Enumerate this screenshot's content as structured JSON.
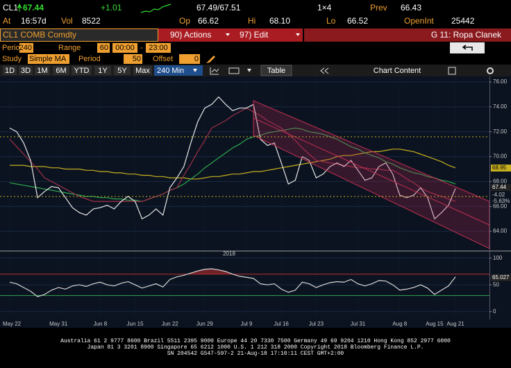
{
  "header": {
    "ticker": "CL1",
    "last": "67.44",
    "change": "+1.01",
    "bid_ask": "67.49/67.51",
    "size": "1×4",
    "prev_label": "Prev",
    "prev": "66.43",
    "at_label": "At",
    "time": "16:57d",
    "vol_label": "Vol",
    "vol": "8522",
    "open_label": "Op",
    "open": "66.62",
    "high_label": "Hi",
    "high": "68.10",
    "low_label": "Lo",
    "low": "66.52",
    "oi_label": "OpenInt",
    "oi": "25442"
  },
  "menu": {
    "security": "CL1 COMB Comdty",
    "actions": "90) Actions",
    "edit": "97) Edit",
    "page": "G 11: Ropa Clanek"
  },
  "settings": {
    "period_label": "Period",
    "period": "240",
    "range_label": "Range",
    "range": "60",
    "from": "00:00",
    "dash": "-",
    "to": "23:00",
    "study_label": "Study",
    "study": "Simple MA",
    "study_period_label": "Period",
    "study_period": "50",
    "offset_label": "Offset",
    "offset": "0"
  },
  "toolbar": {
    "ranges": [
      "1D",
      "3D",
      "1M",
      "6M",
      "YTD",
      "1Y",
      "5Y",
      "Max"
    ],
    "interval": "240 Min",
    "table": "Table",
    "content": "Chart Content"
  },
  "chart_data": [
    {
      "type": "line",
      "categories": [
        "May 22",
        null,
        null,
        null,
        null,
        null,
        null,
        "May 31",
        null,
        null,
        null,
        null,
        null,
        "Jun 8",
        null,
        null,
        null,
        null,
        "Jun 15",
        null,
        null,
        null,
        null,
        "Jun 22",
        null,
        null,
        null,
        null,
        "Jun 29",
        null,
        null,
        null,
        null,
        null,
        "Jul 9",
        null,
        null,
        null,
        null,
        "Jul 16",
        null,
        null,
        null,
        null,
        "Jul 23",
        null,
        null,
        null,
        null,
        null,
        "Jul 31",
        null,
        null,
        null,
        null,
        null,
        "Aug 8",
        null,
        null,
        null,
        null,
        "Aug 15",
        null,
        null,
        "Aug 21"
      ],
      "year_label": "2018",
      "series": [
        {
          "color": "#c8b020",
          "values": [
            69.3,
            69.3,
            69.3,
            69.2,
            69.2,
            69.2,
            69.1,
            69.1,
            69.0,
            69.0,
            69.0,
            68.9,
            68.9,
            68.8,
            68.8,
            68.7,
            68.7,
            68.6,
            68.6,
            68.5,
            68.5,
            68.4,
            68.4,
            68.3,
            68.3,
            68.3,
            68.2,
            68.2,
            68.3,
            68.4,
            68.4,
            68.5,
            68.6,
            68.6,
            68.7,
            68.8,
            68.8,
            68.9,
            69.0,
            69.1,
            69.2,
            69.3,
            69.4,
            69.5,
            69.6,
            69.7,
            69.8,
            70.0,
            70.1,
            70.1,
            70.2,
            70.3,
            70.4,
            70.4,
            70.5,
            70.6,
            70.6,
            70.5,
            70.4,
            70.2,
            70.0,
            69.8,
            69.6,
            69.3,
            69.1
          ]
        },
        {
          "color": "#2fa84f",
          "values": [
            67.9,
            67.8,
            67.7,
            67.6,
            67.5,
            67.4,
            67.3,
            67.2,
            67.1,
            67.0,
            66.9,
            66.8,
            66.8,
            66.7,
            66.7,
            66.6,
            66.6,
            66.5,
            66.5,
            66.4,
            66.6,
            66.8,
            67.0,
            67.3,
            67.5,
            67.8,
            68.2,
            68.6,
            69.1,
            69.5,
            69.9,
            70.3,
            70.7,
            71.0,
            71.4,
            71.6,
            71.7,
            71.9,
            72.0,
            72.1,
            72.2,
            72.3,
            72.2,
            72.0,
            71.9,
            71.8,
            71.6,
            71.4,
            71.1,
            70.8,
            70.6,
            70.3,
            70.1,
            69.9,
            69.6,
            69.4,
            69.1,
            68.9,
            68.7,
            68.6,
            68.4,
            68.3,
            68.1,
            68.0,
            67.8
          ]
        },
        {
          "color": "#a0304a",
          "values": [
            71.4,
            70.8,
            70.2,
            69.6,
            69.0,
            68.3,
            68.0,
            67.7,
            67.4,
            67.1,
            66.8,
            66.6,
            66.4,
            66.4,
            66.4,
            66.4,
            66.4,
            66.4,
            66.4,
            66.4,
            66.6,
            66.8,
            67.0,
            67.3,
            67.5,
            68.5,
            69.4,
            70.4,
            71.3,
            72.3,
            72.6,
            72.9,
            73.3,
            73.6,
            73.9,
            73.6,
            73.3,
            72.9,
            72.6,
            72.3,
            71.8,
            71.3,
            70.7,
            70.2,
            69.7,
            69.6,
            69.5,
            69.4,
            69.3,
            69.2,
            69.1,
            69.1,
            69.0,
            69.0,
            68.9,
            68.9,
            68.6,
            68.2,
            67.9,
            67.5,
            67.2,
            67.0,
            66.8,
            66.6,
            66.4
          ]
        },
        {
          "color": "#e8e8e8",
          "values": [
            72.3,
            72.0,
            71.1,
            69.7,
            66.7,
            67.2,
            67.6,
            67.5,
            66.7,
            65.9,
            65.5,
            65.3,
            65.8,
            65.9,
            66.1,
            65.8,
            66.4,
            66.8,
            66.4,
            65.0,
            65.3,
            65.8,
            65.3,
            67.5,
            68.3,
            69.2,
            71.1,
            72.8,
            73.9,
            74.2,
            74.8,
            74.2,
            73.7,
            73.9,
            73.9,
            74.2,
            71.4,
            70.9,
            71.1,
            69.5,
            67.8,
            68.1,
            70.0,
            69.7,
            68.3,
            68.6,
            69.2,
            69.5,
            69.2,
            69.7,
            68.9,
            68.1,
            68.3,
            69.2,
            69.5,
            68.6,
            66.9,
            66.7,
            66.9,
            67.5,
            66.7,
            65.0,
            65.5,
            66.1,
            67.44
          ]
        }
      ],
      "ylim": [
        62.5,
        76.45
      ],
      "yticks": [
        {
          "value": 64,
          "label": "64.00"
        },
        {
          "value": 66,
          "label": "66.00"
        },
        {
          "value": 68,
          "label": "68.00"
        },
        {
          "value": 70,
          "label": "70.00"
        },
        {
          "value": 72,
          "label": "72.00"
        },
        {
          "value": 74,
          "label": "74.00"
        },
        {
          "value": 76,
          "label": "76.00"
        }
      ],
      "grid": true,
      "annotations": [
        "68.95",
        "67.44",
        "-4.02",
        "-5.63%"
      ]
    },
    {
      "type": "line",
      "series": [
        {
          "color": "#d8d8d8",
          "values": [
            55,
            52,
            45,
            38,
            28,
            32,
            40,
            45,
            42,
            48,
            50,
            47,
            52,
            55,
            50,
            48,
            53,
            56,
            50,
            44,
            48,
            52,
            46,
            60,
            65,
            68,
            72,
            76,
            79,
            80,
            78,
            75,
            70,
            66,
            64,
            62,
            52,
            50,
            52,
            42,
            36,
            40,
            55,
            52,
            45,
            50,
            54,
            56,
            55,
            60,
            52,
            48,
            52,
            58,
            57,
            50,
            40,
            42,
            45,
            50,
            44,
            32,
            40,
            48,
            65.027
          ]
        }
      ],
      "ylim": [
        -12,
        110
      ],
      "yticks": [
        0,
        50,
        100
      ],
      "levels": [
        {
          "value": 70,
          "color": "#c03030"
        },
        {
          "value": 30,
          "color": "#2fa84f"
        }
      ],
      "annotations": [
        "65.027"
      ]
    }
  ],
  "footer": [
    "Australia 61 2 9777 8600 Brazil 5511 2395 9000 Europe 44 20 7330 7500 Germany 49 69 9204 1210 Hong Kong 852 2977 6000",
    "Japan 81 3 3201 8900       Singapore 65 6212 1000       U.S. 1 212 318 2000        Copyright 2018 Bloomberg Finance L.P.",
    "SN 204542 G547-597-2 21-Aug-18 17:10:11 CEST GMT+2:00"
  ]
}
